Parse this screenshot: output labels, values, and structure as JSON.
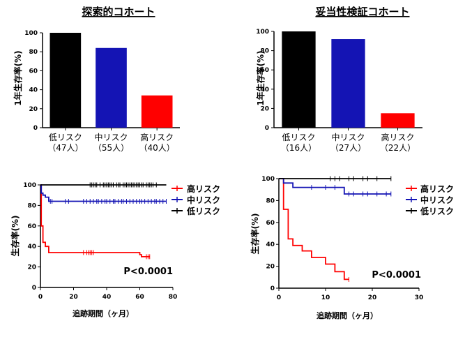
{
  "chart_data": [
    {
      "type": "bar",
      "title": "探索的コホート",
      "ylabel": "1年生存率(%)",
      "ylim": [
        0,
        100
      ],
      "yticks": [
        0,
        20,
        40,
        60,
        80,
        100
      ],
      "categories": [
        "低リスク",
        "中リスク",
        "高リスク"
      ],
      "counts": [
        "（47人）",
        "（55人）",
        "（40人）"
      ],
      "values": [
        100,
        84,
        34
      ],
      "colors": [
        "#000000",
        "#1414b4",
        "#ff0000"
      ]
    },
    {
      "type": "bar",
      "title": "妥当性検証コホート",
      "ylabel": "1年生存率(%)",
      "ylim": [
        0,
        100
      ],
      "yticks": [
        0,
        20,
        40,
        60,
        80,
        100
      ],
      "categories": [
        "低リスク",
        "中リスク",
        "高リスク"
      ],
      "counts": [
        "（16人）",
        "（27人）",
        "（22人）"
      ],
      "values": [
        100,
        92,
        15
      ],
      "colors": [
        "#000000",
        "#1414b4",
        "#ff0000"
      ]
    },
    {
      "type": "line",
      "ylabel": "生存率(%)",
      "xlabel": "追跡期間（ヶ月）",
      "xlim": [
        0,
        80
      ],
      "ylim": [
        0,
        100
      ],
      "xticks": [
        0,
        20,
        40,
        60,
        80
      ],
      "yticks": [
        0,
        20,
        40,
        60,
        80,
        100
      ],
      "annotation": "P<0.0001",
      "legend_position": "top-right",
      "series": [
        {
          "name": "高リスク",
          "color": "#ff0000",
          "x": [
            0,
            0.5,
            0.5,
            1.5,
            1.5,
            3,
            3,
            5,
            5,
            60,
            60,
            61,
            61,
            66
          ],
          "y": [
            100,
            100,
            60,
            60,
            44,
            44,
            40,
            40,
            34,
            34,
            32,
            32,
            30,
            30
          ],
          "censor_x": [
            26,
            28,
            29,
            30,
            31,
            32,
            64,
            65,
            66
          ],
          "censor_y": [
            34,
            34,
            34,
            34,
            34,
            34,
            30,
            30,
            30
          ]
        },
        {
          "name": "中リスク",
          "color": "#1414b4",
          "x": [
            0,
            0.5,
            0.5,
            1.5,
            1.5,
            3,
            3,
            5,
            5,
            76
          ],
          "y": [
            100,
            100,
            92,
            92,
            90,
            90,
            88,
            88,
            84,
            84
          ],
          "censor_x": [
            6,
            7,
            15,
            17,
            26,
            28,
            30,
            32,
            34,
            35,
            37,
            39,
            40,
            42,
            44,
            45,
            47,
            49,
            50,
            52,
            54,
            56,
            58,
            60,
            61,
            63,
            65,
            67,
            69,
            70,
            72,
            74,
            76
          ],
          "censor_y": [
            84,
            84,
            84,
            84,
            84,
            84,
            84,
            84,
            84,
            84,
            84,
            84,
            84,
            84,
            84,
            84,
            84,
            84,
            84,
            84,
            84,
            84,
            84,
            84,
            84,
            84,
            84,
            84,
            84,
            84,
            84,
            84,
            84
          ]
        },
        {
          "name": "低リスク",
          "color": "#000000",
          "x": [
            0,
            76
          ],
          "y": [
            100,
            100
          ],
          "censor_x": [
            30,
            31,
            32,
            33,
            34,
            36,
            38,
            39,
            40,
            41,
            42,
            43,
            44,
            46,
            47,
            48,
            50,
            51,
            52,
            53,
            54,
            55,
            56,
            57,
            58,
            59,
            60,
            61,
            62,
            64,
            65,
            66,
            67,
            68,
            70
          ],
          "censor_y": [
            100,
            100,
            100,
            100,
            100,
            100,
            100,
            100,
            100,
            100,
            100,
            100,
            100,
            100,
            100,
            100,
            100,
            100,
            100,
            100,
            100,
            100,
            100,
            100,
            100,
            100,
            100,
            100,
            100,
            100,
            100,
            100,
            100,
            100,
            100
          ]
        }
      ]
    },
    {
      "type": "line",
      "ylabel": "生存率(%)",
      "xlabel": "追跡期間（ヶ月）",
      "xlim": [
        0,
        30
      ],
      "ylim": [
        0,
        100
      ],
      "xticks": [
        0,
        10,
        20,
        30
      ],
      "yticks": [
        0,
        20,
        40,
        60,
        80,
        100
      ],
      "annotation": "P<0.0001",
      "legend_position": "top-right",
      "series": [
        {
          "name": "高リスク",
          "color": "#ff0000",
          "x": [
            0,
            1,
            1,
            2,
            2,
            3,
            3,
            5,
            5,
            7,
            7,
            10,
            10,
            12,
            12,
            14,
            14,
            15
          ],
          "y": [
            100,
            100,
            72,
            72,
            45,
            45,
            39,
            39,
            34,
            34,
            28,
            28,
            22,
            22,
            15,
            15,
            8,
            8
          ],
          "censor_x": [
            15
          ],
          "censor_y": [
            8
          ]
        },
        {
          "name": "中リスク",
          "color": "#1414b4",
          "x": [
            0,
            1,
            1,
            2,
            2,
            3,
            3,
            14,
            14,
            24
          ],
          "y": [
            100,
            100,
            96,
            96,
            96,
            96,
            92,
            92,
            86,
            86
          ],
          "censor_x": [
            7,
            10,
            12,
            15,
            16,
            18,
            19,
            21,
            23,
            24
          ],
          "censor_y": [
            92,
            92,
            92,
            86,
            86,
            86,
            86,
            86,
            86,
            86
          ]
        },
        {
          "name": "低リスク",
          "color": "#000000",
          "x": [
            0,
            24
          ],
          "y": [
            100,
            100
          ],
          "censor_x": [
            11,
            12,
            13,
            15,
            16,
            18,
            19,
            21,
            24
          ],
          "censor_y": [
            100,
            100,
            100,
            100,
            100,
            100,
            100,
            100,
            100
          ]
        }
      ]
    }
  ]
}
